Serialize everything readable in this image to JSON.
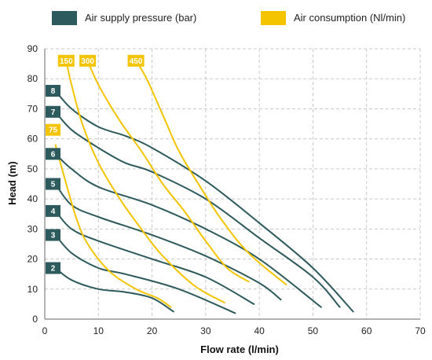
{
  "chart_data": {
    "type": "line",
    "title": "",
    "xlabel": "Flow rate (l/min)",
    "ylabel": "Head (m)",
    "xlim": [
      0,
      70
    ],
    "ylim": [
      0,
      90
    ],
    "xticks": [
      "0",
      "10",
      "20",
      "30",
      "40",
      "50",
      "60",
      "70"
    ],
    "yticks": [
      "0",
      "10",
      "20",
      "30",
      "40",
      "50",
      "60",
      "70",
      "80",
      "90"
    ],
    "grid": true,
    "legend": {
      "placement": "top",
      "entries": [
        {
          "label": "Air supply pressure (bar)",
          "color": "#2d5a5c"
        },
        {
          "label": "Air consumption (Nl/min)",
          "color": "#f5c400"
        }
      ]
    },
    "series": [
      {
        "group": "pressure",
        "name": "2",
        "color": "#2d5a5c",
        "points": [
          [
            2,
            17
          ],
          [
            5,
            13
          ],
          [
            10,
            10
          ],
          [
            15,
            9
          ],
          [
            20,
            7
          ],
          [
            24,
            2.5
          ]
        ]
      },
      {
        "group": "pressure",
        "name": "3",
        "color": "#2d5a5c",
        "points": [
          [
            2,
            28
          ],
          [
            5,
            22
          ],
          [
            10,
            17
          ],
          [
            15,
            15
          ],
          [
            25,
            10
          ],
          [
            35.5,
            2
          ]
        ]
      },
      {
        "group": "pressure",
        "name": "4",
        "color": "#2d5a5c",
        "points": [
          [
            2,
            36
          ],
          [
            5,
            30
          ],
          [
            10,
            26
          ],
          [
            20,
            20
          ],
          [
            30,
            14
          ],
          [
            39,
            5
          ]
        ]
      },
      {
        "group": "pressure",
        "name": "5",
        "color": "#2d5a5c",
        "points": [
          [
            2,
            45
          ],
          [
            5,
            38
          ],
          [
            10,
            34
          ],
          [
            20,
            28
          ],
          [
            30,
            21
          ],
          [
            40,
            12
          ],
          [
            44,
            6.5
          ]
        ]
      },
      {
        "group": "pressure",
        "name": "6",
        "color": "#2d5a5c",
        "points": [
          [
            2,
            55
          ],
          [
            5,
            50
          ],
          [
            10,
            44
          ],
          [
            20,
            38
          ],
          [
            30,
            30
          ],
          [
            40,
            20
          ],
          [
            51.5,
            4
          ]
        ]
      },
      {
        "group": "pressure",
        "name": "7",
        "color": "#2d5a5c",
        "points": [
          [
            2,
            69
          ],
          [
            5,
            63
          ],
          [
            10,
            57
          ],
          [
            15,
            52
          ],
          [
            20,
            49
          ],
          [
            30,
            40
          ],
          [
            40,
            27
          ],
          [
            50,
            14
          ],
          [
            55,
            4
          ]
        ]
      },
      {
        "group": "pressure",
        "name": "8",
        "color": "#2d5a5c",
        "points": [
          [
            2,
            76
          ],
          [
            5,
            70
          ],
          [
            10,
            64
          ],
          [
            15,
            61
          ],
          [
            20,
            57
          ],
          [
            30,
            46
          ],
          [
            40,
            32
          ],
          [
            50,
            17
          ],
          [
            57.5,
            2.5
          ]
        ]
      },
      {
        "group": "consumption",
        "name": "75",
        "color": "#f5c400",
        "points": [
          [
            2,
            58
          ],
          [
            4,
            45
          ],
          [
            6,
            33
          ],
          [
            8,
            25
          ],
          [
            12,
            16
          ],
          [
            17,
            10
          ],
          [
            21,
            7
          ],
          [
            23.5,
            4
          ]
        ]
      },
      {
        "group": "consumption",
        "name": "150",
        "color": "#f5c400",
        "points": [
          [
            4,
            86
          ],
          [
            5,
            78
          ],
          [
            7,
            65
          ],
          [
            10,
            52
          ],
          [
            14,
            40
          ],
          [
            18,
            30
          ],
          [
            22,
            21
          ],
          [
            28,
            11
          ],
          [
            33.5,
            5.5
          ]
        ]
      },
      {
        "group": "consumption",
        "name": "300",
        "color": "#f5c400",
        "points": [
          [
            8,
            86
          ],
          [
            10,
            78
          ],
          [
            14,
            66
          ],
          [
            18,
            56
          ],
          [
            22,
            45
          ],
          [
            26,
            36
          ],
          [
            30,
            26
          ],
          [
            34,
            17
          ],
          [
            38,
            12.5
          ]
        ]
      },
      {
        "group": "consumption",
        "name": "450",
        "color": "#f5c400",
        "points": [
          [
            17,
            86
          ],
          [
            19,
            80
          ],
          [
            22,
            68
          ],
          [
            25,
            56
          ],
          [
            29,
            44
          ],
          [
            33,
            33
          ],
          [
            38,
            22
          ],
          [
            45,
            11.5
          ]
        ]
      }
    ]
  }
}
